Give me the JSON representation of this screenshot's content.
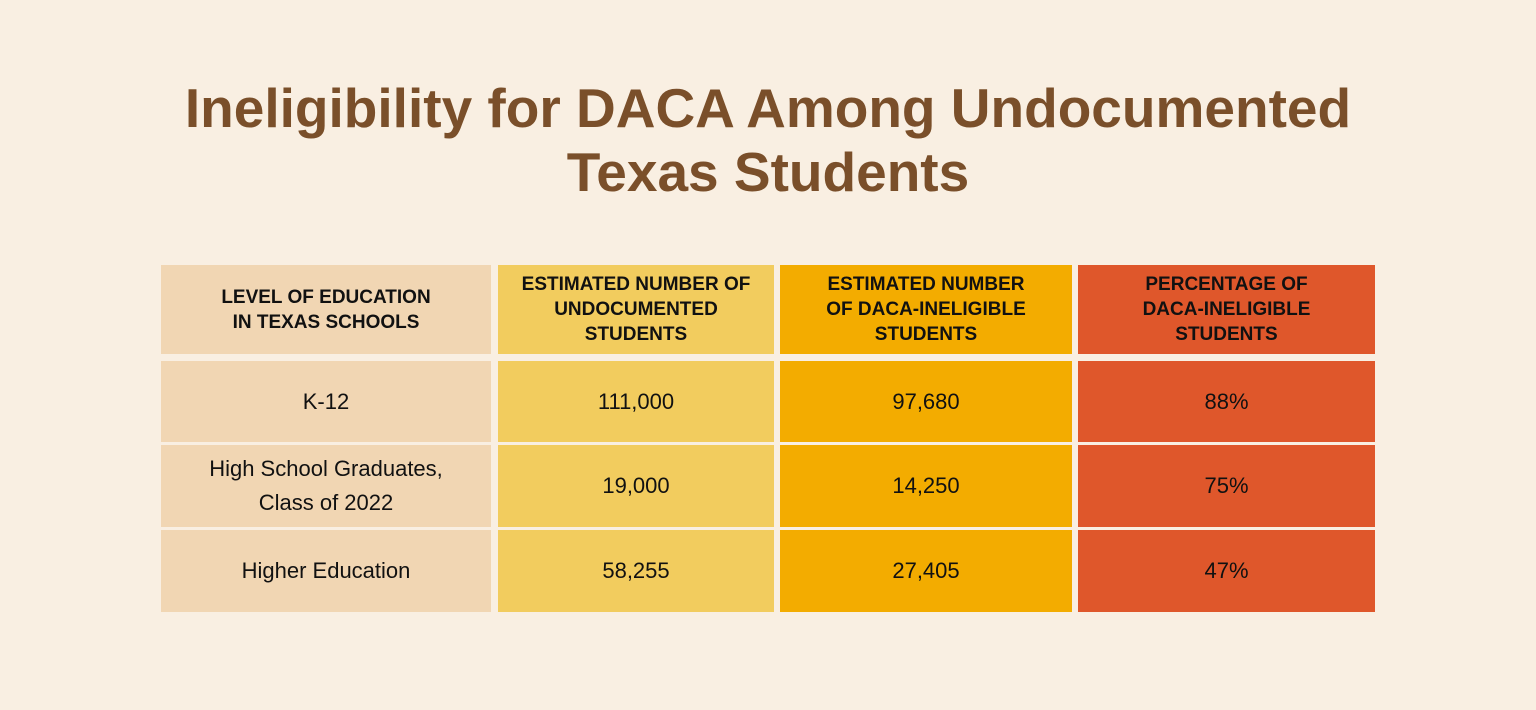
{
  "title_lines": [
    "Ineligibility for DACA Among Undocumented",
    "Texas Students"
  ],
  "chart_data": {
    "type": "table",
    "title": "Ineligibility for DACA Among Undocumented Texas Students",
    "columns": [
      [
        "LEVEL OF EDUCATION",
        "IN TEXAS SCHOOLS"
      ],
      [
        "ESTIMATED NUMBER OF",
        "UNDOCUMENTED",
        "STUDENTS"
      ],
      [
        "ESTIMATED NUMBER",
        "OF DACA-INELIGIBLE",
        "STUDENTS"
      ],
      [
        "PERCENTAGE OF",
        "DACA-INELIGIBLE",
        "STUDENTS"
      ]
    ],
    "rows": [
      [
        [
          "K-12"
        ],
        [
          "111,000"
        ],
        [
          "97,680"
        ],
        [
          "88%"
        ]
      ],
      [
        [
          "High School Graduates,",
          "Class of 2022"
        ],
        [
          "19,000"
        ],
        [
          "14,250"
        ],
        [
          "75%"
        ]
      ],
      [
        [
          "Higher Education"
        ],
        [
          "58,255"
        ],
        [
          "27,405"
        ],
        [
          "47%"
        ]
      ]
    ],
    "column_colors": [
      "#f1d6b3",
      "#f2cc5e",
      "#f3ac00",
      "#df572b"
    ],
    "background": "#f9efe2",
    "title_color": "#7a4f2a"
  }
}
